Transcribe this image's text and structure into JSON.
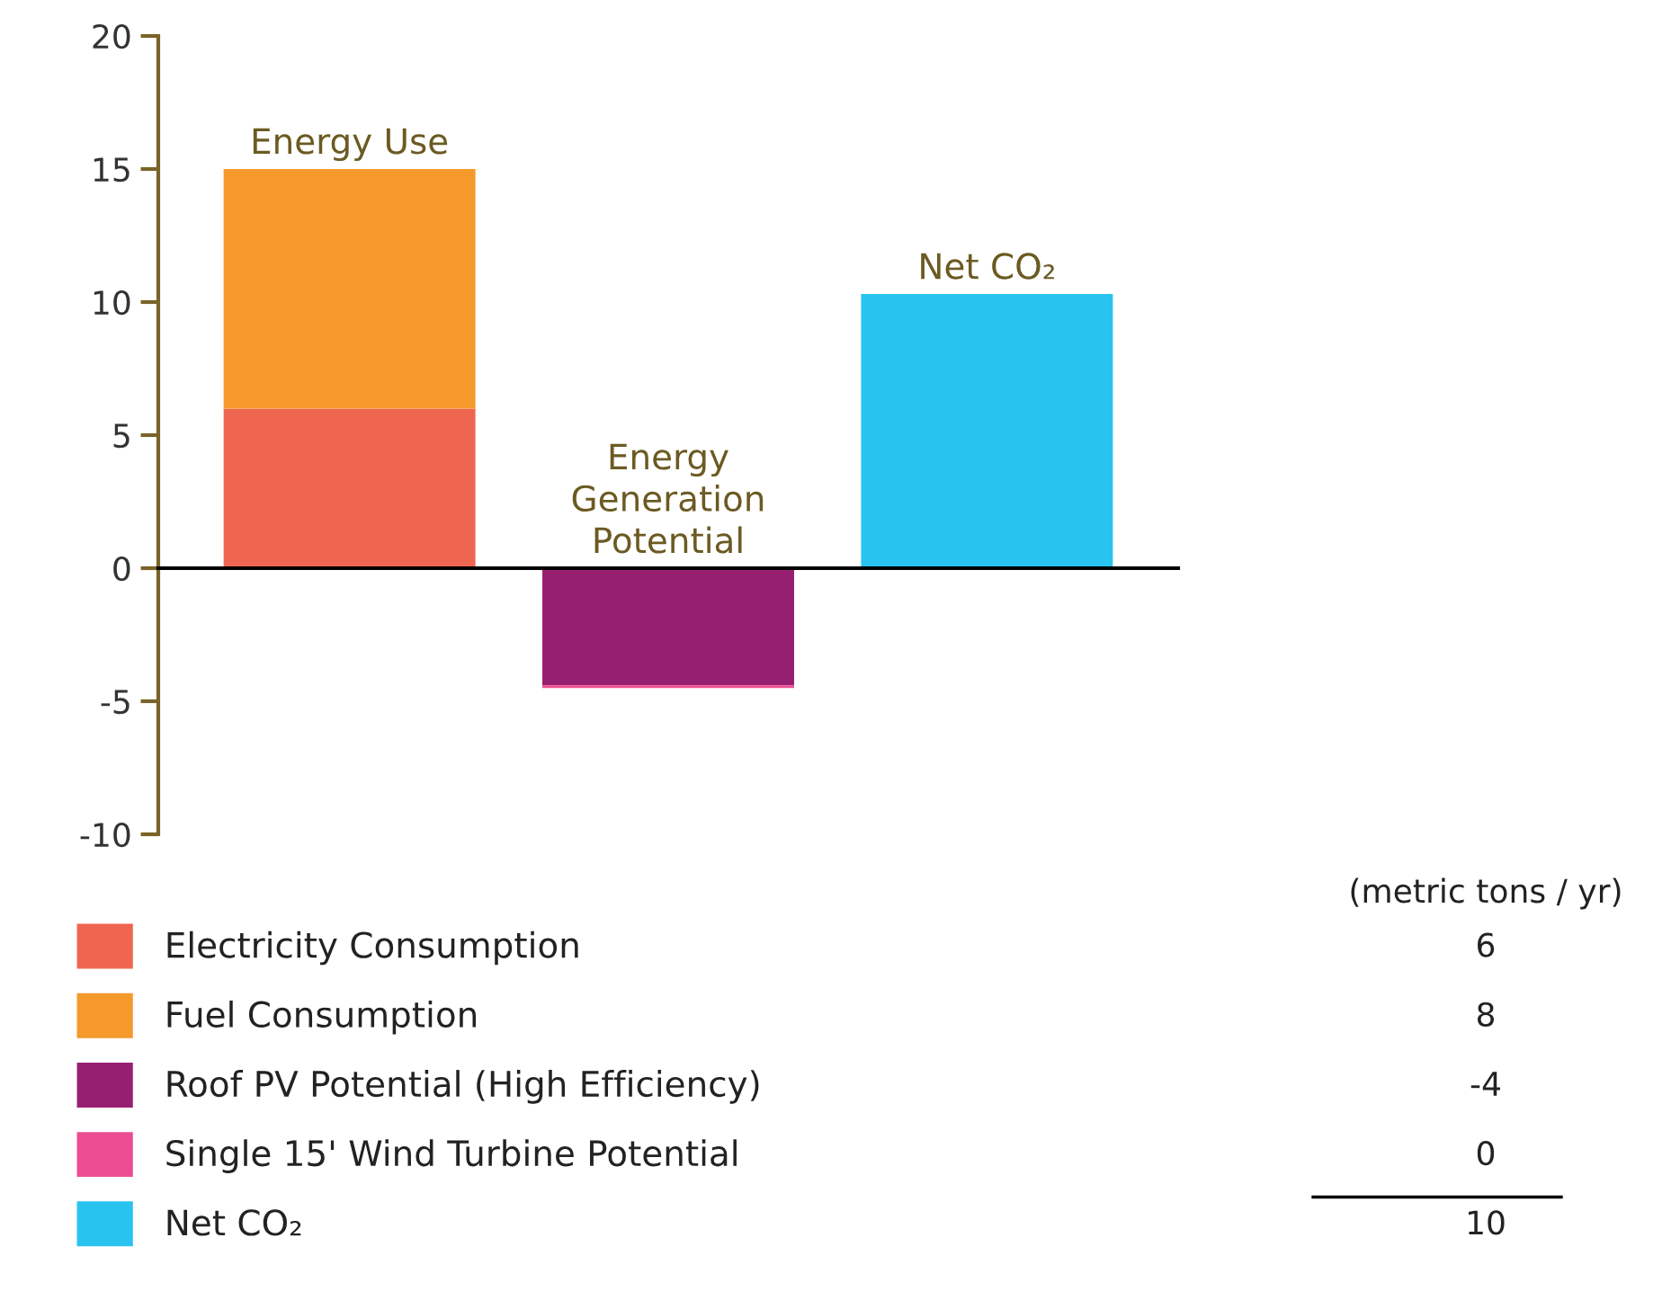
{
  "chart_data": {
    "type": "bar",
    "stacked": true,
    "categories": [
      "Energy Use",
      "Energy\nGeneration\nPotential",
      "Net CO₂"
    ],
    "series": [
      {
        "name": "Electricity Consumption",
        "color": "#ef6650",
        "values": [
          6.0,
          null,
          null
        ]
      },
      {
        "name": "Fuel Consumption",
        "color": "#f5992a",
        "values": [
          9.0,
          null,
          null
        ]
      },
      {
        "name": "Roof PV Potential (High Efficiency)",
        "color": "#971f72",
        "values": [
          null,
          -4.4,
          null
        ]
      },
      {
        "name": "Single 15' Wind Turbine Potential",
        "color": "#ec4c91",
        "values": [
          null,
          -0.1,
          null
        ]
      },
      {
        "name": "Net CO₂",
        "color": "#29c3f0",
        "values": [
          null,
          null,
          10.3
        ]
      }
    ],
    "ylim": [
      -10,
      20
    ],
    "yticks": [
      -10,
      -5,
      0,
      5,
      10,
      15,
      20
    ],
    "legend": "bottom",
    "annotations": [
      "(metric tons / yr)",
      "6",
      "8",
      "-4",
      "0",
      "10"
    ]
  }
}
